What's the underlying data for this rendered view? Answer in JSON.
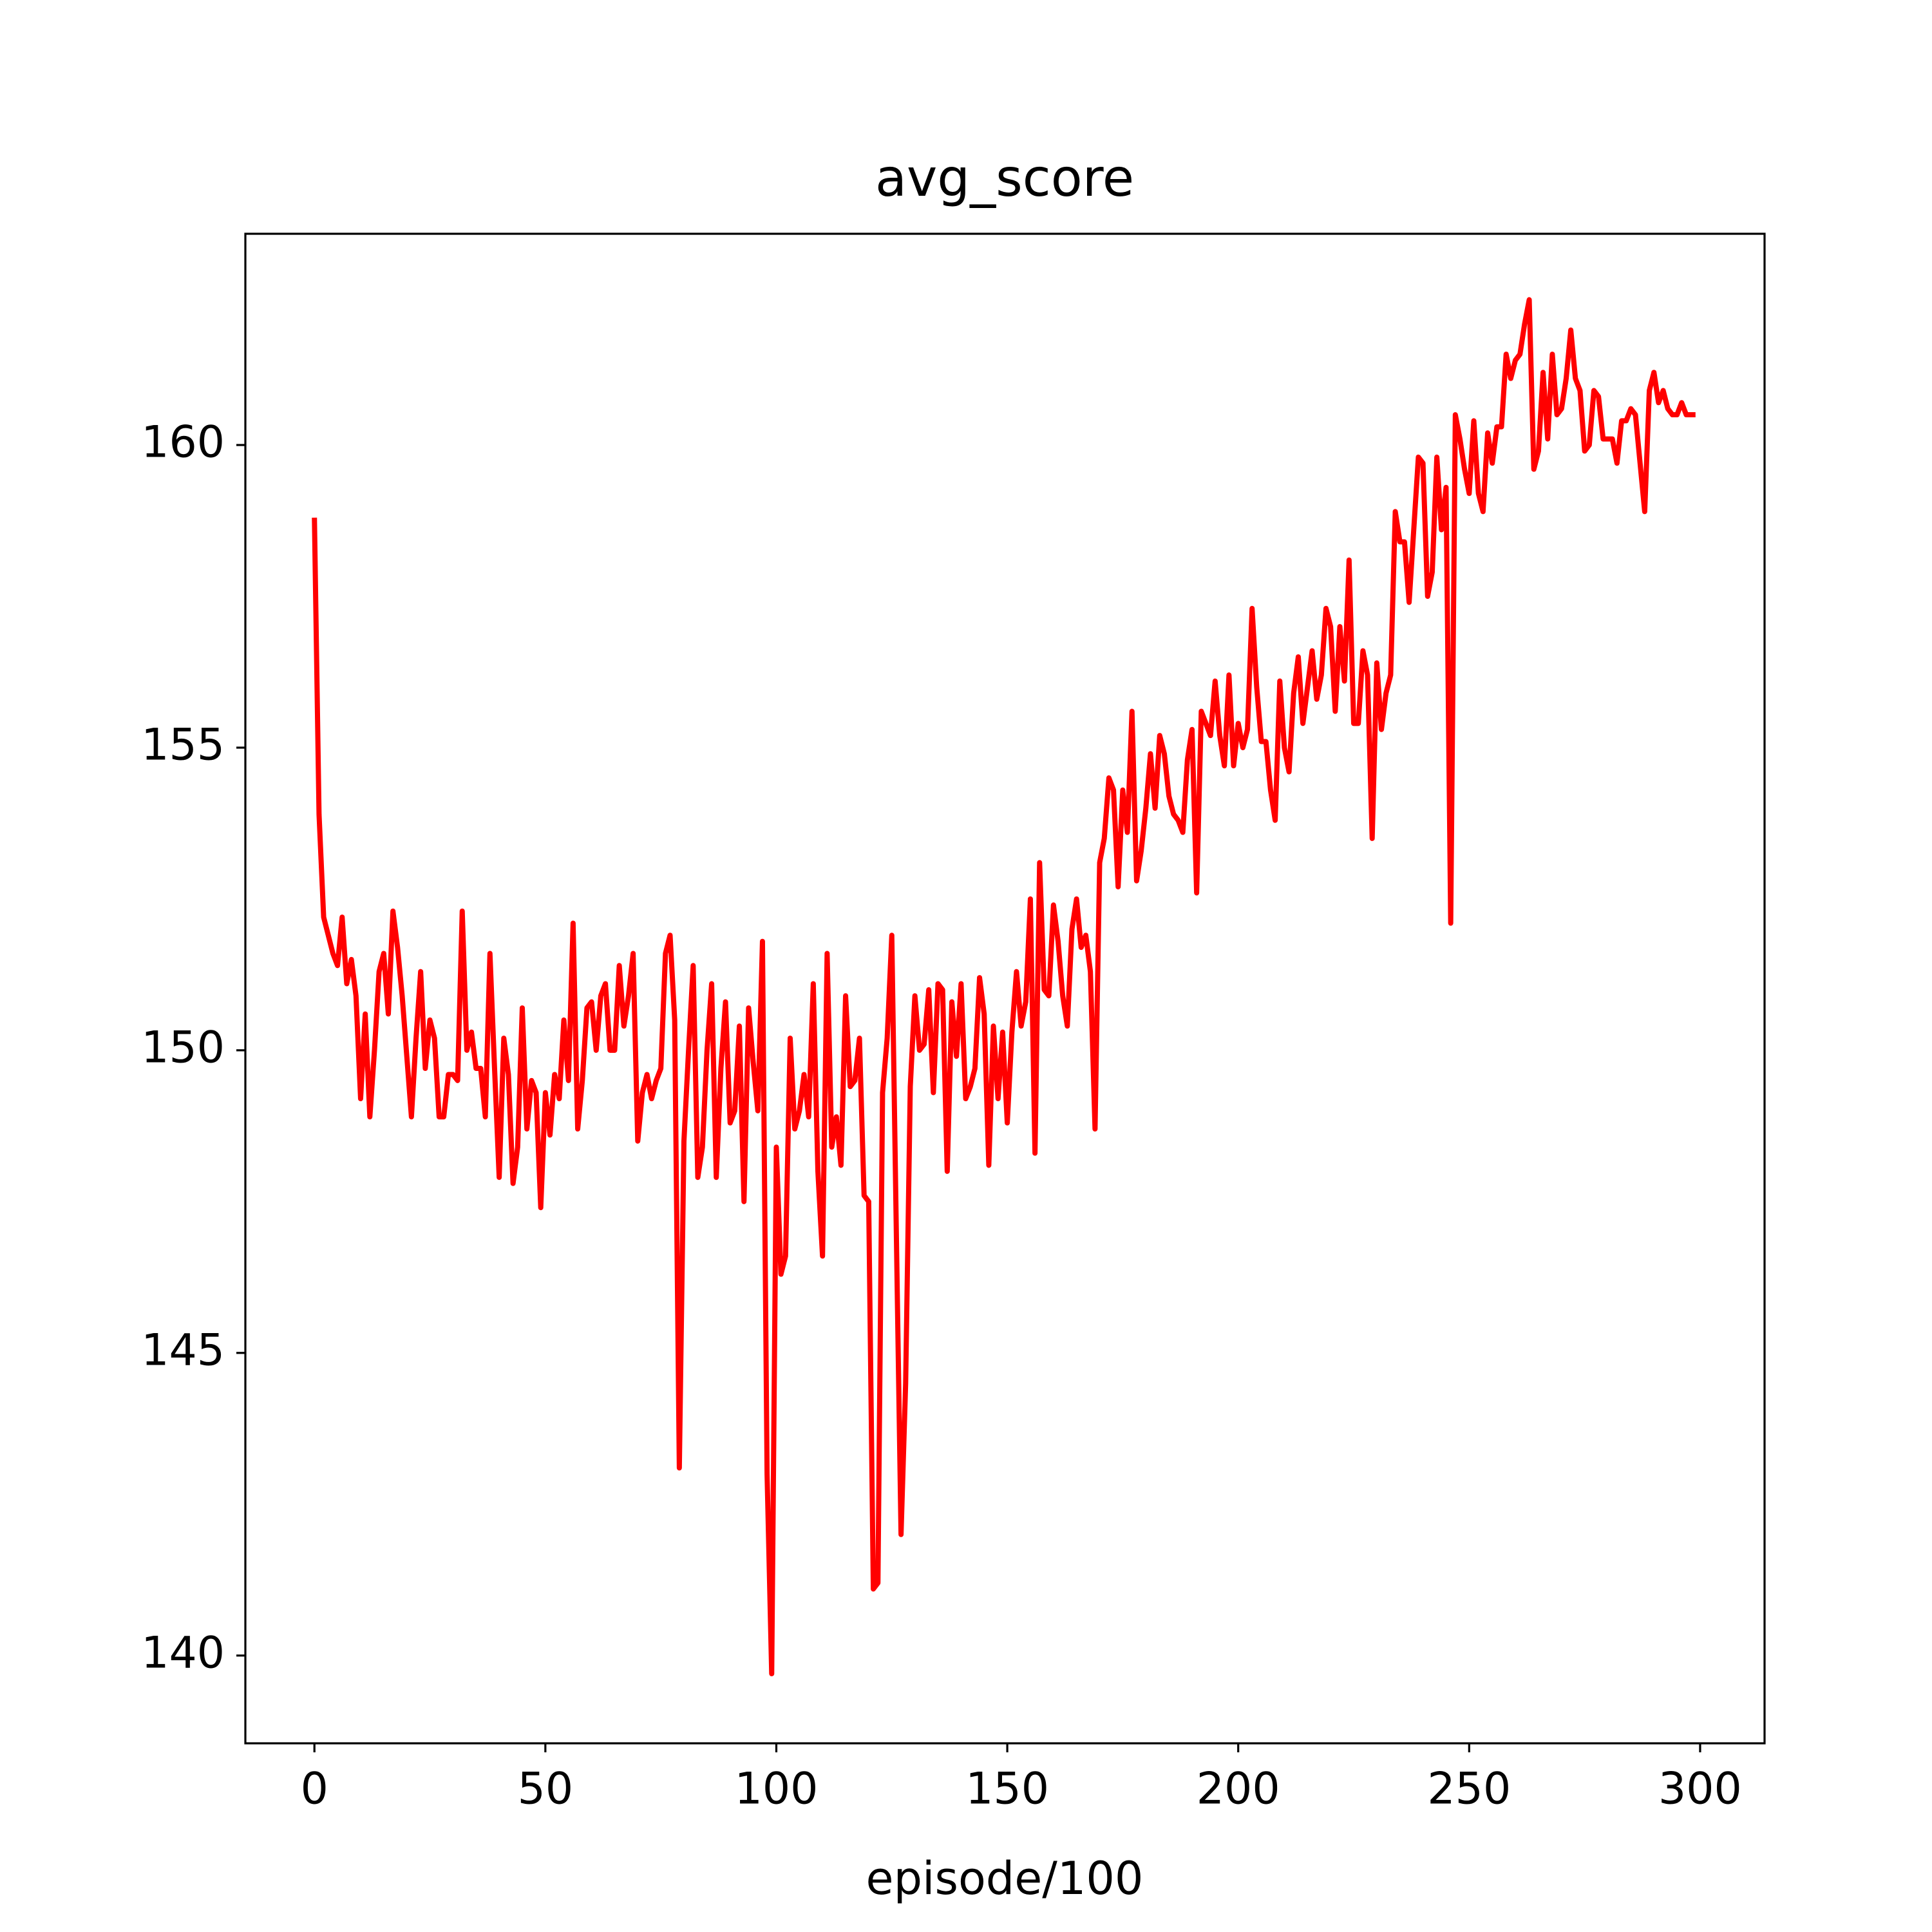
{
  "chart_data": {
    "type": "line",
    "title": "avg_score",
    "x_label": "episode/100",
    "color": "#ff0000",
    "x": [
      0,
      1,
      2,
      3,
      4,
      5,
      6,
      7,
      8,
      9,
      10,
      11,
      12,
      13,
      14,
      15,
      16,
      17,
      18,
      19,
      20,
      21,
      22,
      23,
      24,
      25,
      26,
      27,
      28,
      29,
      30,
      31,
      32,
      33,
      34,
      35,
      36,
      37,
      38,
      39,
      40,
      41,
      42,
      43,
      44,
      45,
      46,
      47,
      48,
      49,
      50,
      51,
      52,
      53,
      54,
      55,
      56,
      57,
      58,
      59,
      60,
      61,
      62,
      63,
      64,
      65,
      66,
      67,
      68,
      69,
      70,
      71,
      72,
      73,
      74,
      75,
      76,
      77,
      78,
      79,
      80,
      81,
      82,
      83,
      84,
      85,
      86,
      87,
      88,
      89,
      90,
      91,
      92,
      93,
      94,
      95,
      96,
      97,
      98,
      99,
      100,
      101,
      102,
      103,
      104,
      105,
      106,
      107,
      108,
      109,
      110,
      111,
      112,
      113,
      114,
      115,
      116,
      117,
      118,
      119,
      120,
      121,
      122,
      123,
      124,
      125,
      126,
      127,
      128,
      129,
      130,
      131,
      132,
      133,
      134,
      135,
      136,
      137,
      138,
      139,
      140,
      141,
      142,
      143,
      144,
      145,
      146,
      147,
      148,
      149,
      150,
      151,
      152,
      153,
      154,
      155,
      156,
      157,
      158,
      159,
      160,
      161,
      162,
      163,
      164,
      165,
      166,
      167,
      168,
      169,
      170,
      171,
      172,
      173,
      174,
      175,
      176,
      177,
      178,
      179,
      180,
      181,
      182,
      183,
      184,
      185,
      186,
      187,
      188,
      189,
      190,
      191,
      192,
      193,
      194,
      195,
      196,
      197,
      198,
      199,
      200,
      201,
      202,
      203,
      204,
      205,
      206,
      207,
      208,
      209,
      210,
      211,
      212,
      213,
      214,
      215,
      216,
      217,
      218,
      219,
      220,
      221,
      222,
      223,
      224,
      225,
      226,
      227,
      228,
      229,
      230,
      231,
      232,
      233,
      234,
      235,
      236,
      237,
      238,
      239,
      240,
      241,
      242,
      243,
      244,
      245,
      246,
      247,
      248,
      249,
      250,
      251,
      252,
      253,
      254,
      255,
      256,
      257,
      258,
      259,
      260,
      261,
      262,
      263,
      264,
      265,
      266,
      267,
      268,
      269,
      270,
      271,
      272,
      273,
      274,
      275,
      276,
      277,
      278,
      279,
      280,
      281,
      282,
      283,
      284,
      285,
      286,
      287,
      288,
      289,
      290,
      291,
      292,
      293,
      294,
      295,
      296,
      297,
      298,
      299
    ],
    "values": [
      158.8,
      153.9,
      152.2,
      151.9,
      151.6,
      151.4,
      152.2,
      151.1,
      151.5,
      150.9,
      149.2,
      150.6,
      148.9,
      150.0,
      151.3,
      151.6,
      150.6,
      152.3,
      151.7,
      150.9,
      149.9,
      148.9,
      150.2,
      151.3,
      149.7,
      150.5,
      150.2,
      148.9,
      148.9,
      149.6,
      149.6,
      149.5,
      152.3,
      150.0,
      150.3,
      149.7,
      149.7,
      148.9,
      151.6,
      149.7,
      147.9,
      150.2,
      149.6,
      147.8,
      148.4,
      150.7,
      148.7,
      149.5,
      149.3,
      147.4,
      149.3,
      148.6,
      149.6,
      149.2,
      150.5,
      149.5,
      152.1,
      148.7,
      149.5,
      150.7,
      150.8,
      150.0,
      150.9,
      151.1,
      150.0,
      150.0,
      151.4,
      150.4,
      150.9,
      151.6,
      148.5,
      149.3,
      149.6,
      149.2,
      149.5,
      149.7,
      151.6,
      151.9,
      150.5,
      143.1,
      148.5,
      150.0,
      151.4,
      147.9,
      148.4,
      150.0,
      151.1,
      147.9,
      149.7,
      150.8,
      148.8,
      149.0,
      150.4,
      147.5,
      150.7,
      149.8,
      149.0,
      151.8,
      143.0,
      139.7,
      148.4,
      146.3,
      146.6,
      150.2,
      148.7,
      149.0,
      149.6,
      148.9,
      151.1,
      148.0,
      146.6,
      151.6,
      148.4,
      148.9,
      148.1,
      150.9,
      149.4,
      149.5,
      150.2,
      147.6,
      147.5,
      141.1,
      141.2,
      149.3,
      150.2,
      151.9,
      146.9,
      142.0,
      144.5,
      149.4,
      150.9,
      150.0,
      150.1,
      151.0,
      149.3,
      151.1,
      151.0,
      148.0,
      150.8,
      149.9,
      151.1,
      149.2,
      149.4,
      149.7,
      151.2,
      150.6,
      148.1,
      150.4,
      149.2,
      150.3,
      148.8,
      150.3,
      151.3,
      150.4,
      150.8,
      152.5,
      148.3,
      153.1,
      151.0,
      150.9,
      152.4,
      151.8,
      150.9,
      150.4,
      152.0,
      152.5,
      151.7,
      151.9,
      151.3,
      148.7,
      153.1,
      153.5,
      154.5,
      154.3,
      152.7,
      154.3,
      153.6,
      155.6,
      152.8,
      153.3,
      154.0,
      154.9,
      154.0,
      155.2,
      154.9,
      154.2,
      153.9,
      153.8,
      153.6,
      154.8,
      155.3,
      152.6,
      155.6,
      155.4,
      155.2,
      156.1,
      155.2,
      154.7,
      156.2,
      154.7,
      155.4,
      155.0,
      155.3,
      157.3,
      156.0,
      155.1,
      155.1,
      154.3,
      153.8,
      156.1,
      155.0,
      154.6,
      155.9,
      156.5,
      155.4,
      156.0,
      156.6,
      155.8,
      156.2,
      157.3,
      157.0,
      155.6,
      157.0,
      156.1,
      158.1,
      155.4,
      155.4,
      156.6,
      156.2,
      153.5,
      156.4,
      155.3,
      155.9,
      156.2,
      158.9,
      158.4,
      158.4,
      157.4,
      158.6,
      159.8,
      159.7,
      157.5,
      157.9,
      159.8,
      158.6,
      159.3,
      152.1,
      160.5,
      160.1,
      159.6,
      159.2,
      160.4,
      159.2,
      158.9,
      160.2,
      159.7,
      160.3,
      160.3,
      161.5,
      161.1,
      161.4,
      161.5,
      162.0,
      162.4,
      159.6,
      159.9,
      161.2,
      160.1,
      161.5,
      160.5,
      160.6,
      161.1,
      161.9,
      161.1,
      160.9,
      159.9,
      160.0,
      160.9,
      160.8,
      160.1,
      160.1,
      160.1,
      159.7,
      160.4,
      160.4,
      160.6,
      160.5,
      159.7,
      158.9,
      160.9,
      161.2,
      160.7,
      160.9,
      160.6,
      160.5,
      160.5,
      160.7,
      160.5,
      160.5,
      160.5
    ],
    "xlim": [
      -14.95,
      313.95
    ],
    "ylim": [
      138.55,
      163.49
    ],
    "xticks": [
      0,
      50,
      100,
      150,
      200,
      250,
      300
    ],
    "yticks": [
      140,
      145,
      150,
      155,
      160
    ]
  }
}
